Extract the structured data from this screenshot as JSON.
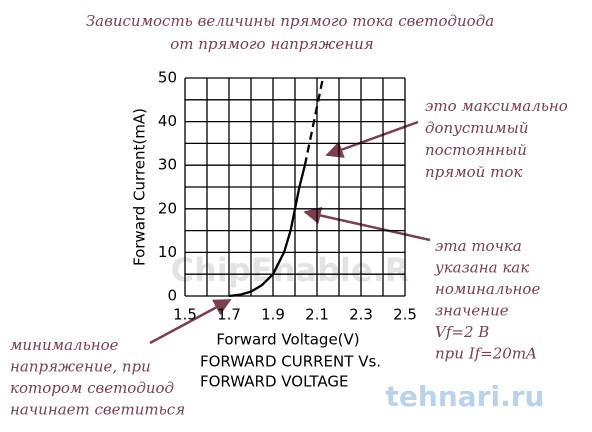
{
  "chart_data": {
    "type": "line",
    "title": [
      "Зависимость величины прямого тока светодиода",
      "от  прямого напряжения"
    ],
    "x_label": "Forward Voltage(V)",
    "y_label": "Forward Current(mA)",
    "subtitle": [
      "FORWARD CURRENT Vs.",
      "FORWARD VOLTAGE"
    ],
    "xlim": [
      1.5,
      2.5
    ],
    "ylim": [
      0,
      50
    ],
    "xticks": [
      1.5,
      1.7,
      1.9,
      2.1,
      2.3,
      2.5
    ],
    "yticks": [
      0,
      10,
      20,
      30,
      40,
      50
    ],
    "grid_x": [
      1.5,
      1.6,
      1.7,
      1.8,
      1.9,
      2.0,
      2.1,
      2.2,
      2.3,
      2.4,
      2.5
    ],
    "grid_y": [
      0,
      5,
      10,
      15,
      20,
      25,
      30,
      35,
      40,
      45,
      50
    ],
    "grid": true,
    "series": [
      {
        "color": "#000000",
        "style": "solid",
        "x": [
          1.7,
          1.75,
          1.8,
          1.85,
          1.9,
          1.95,
          1.98,
          2.0,
          2.02,
          2.045
        ],
        "values": [
          0,
          0.3,
          1,
          2.5,
          5,
          10,
          15,
          20,
          25,
          30
        ]
      },
      {
        "color": "#000000",
        "style": "dashed",
        "x": [
          2.045,
          2.127
        ],
        "values": [
          30,
          50
        ]
      }
    ],
    "annotations": [
      {
        "lines": [
          "это максимально",
          "допустимый",
          "постоянный",
          "прямой ток"
        ]
      },
      {
        "lines": [
          "эта точка",
          "указана как",
          "номинальное",
          "значение",
          "Vf=2 B",
          "при If=20mA"
        ]
      },
      {
        "lines": [
          "минимальное",
          "напряжение, при",
          "котором светодиод",
          "начинает светиться"
        ]
      }
    ],
    "watermarks": [
      "ChipEnable.R",
      "tehnari.ru"
    ]
  }
}
